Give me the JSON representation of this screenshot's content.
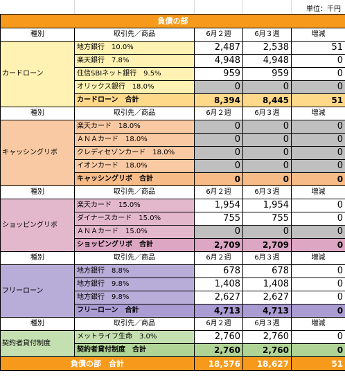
{
  "unit_label": "単位：千円",
  "title": "負債の部",
  "headers": {
    "category": "種別",
    "item": "取引先／商品",
    "w2": "6月２週",
    "w3": "6月３週",
    "diff": "増減"
  },
  "sections": [
    {
      "category": "カードローン",
      "rows": [
        {
          "item": "地方銀行　10.0%",
          "w2": "2,487",
          "w3": "2,538",
          "diff": "51",
          "grey": false
        },
        {
          "item": "楽天銀行　7.8%",
          "w2": "4,948",
          "w3": "4,948",
          "diff": "0",
          "grey": false
        },
        {
          "item": "住信SBIネット銀行　9.5%",
          "w2": "959",
          "w3": "959",
          "diff": "0",
          "grey": false
        },
        {
          "item": "オリックス銀行　18.0%",
          "w2": "0",
          "w3": "0",
          "diff": "0",
          "grey": true
        }
      ],
      "total": {
        "label": "カードローン　合計",
        "w2": "8,394",
        "w3": "8,445",
        "diff": "51"
      }
    },
    {
      "category": "キャッシングリボ",
      "rows": [
        {
          "item": "楽天カード　18.0%",
          "w2": "0",
          "w3": "0",
          "diff": "0",
          "grey": true
        },
        {
          "item": "ＡＮＡカード　18.0%",
          "w2": "0",
          "w3": "0",
          "diff": "0",
          "grey": true
        },
        {
          "item": "クレディセゾンカード　18.0%",
          "w2": "0",
          "w3": "0",
          "diff": "0",
          "grey": true
        },
        {
          "item": "イオンカード　18.0%",
          "w2": "0",
          "w3": "0",
          "diff": "0",
          "grey": true
        }
      ],
      "total": {
        "label": "キャッシングリボ　合計",
        "w2": "0",
        "w3": "0",
        "diff": "0"
      }
    },
    {
      "category": "ショッピングリボ",
      "rows": [
        {
          "item": "楽天カード　15.0%",
          "w2": "1,954",
          "w3": "1,954",
          "diff": "0",
          "grey": false
        },
        {
          "item": "ダイナースカード　15.0%",
          "w2": "755",
          "w3": "755",
          "diff": "0",
          "grey": false
        },
        {
          "item": "ＡＮＡカード　15.0%",
          "w2": "0",
          "w3": "0",
          "diff": "0",
          "grey": true
        }
      ],
      "total": {
        "label": "ショッピングリボ　合計",
        "w2": "2,709",
        "w3": "2,709",
        "diff": "0"
      }
    },
    {
      "category": "フリーローン",
      "rows": [
        {
          "item": "地方銀行　8.8%",
          "w2": "678",
          "w3": "678",
          "diff": "0",
          "grey": false
        },
        {
          "item": "地方銀行　9.8%",
          "w2": "1,408",
          "w3": "1,408",
          "diff": "0",
          "grey": false
        },
        {
          "item": "地方銀行　9.8%",
          "w2": "2,627",
          "w3": "2,627",
          "diff": "0",
          "grey": false
        }
      ],
      "total": {
        "label": "フリーローン　合計",
        "w2": "4,713",
        "w3": "4,713",
        "diff": "0"
      }
    },
    {
      "category": "契約者貸付制度",
      "rows": [
        {
          "item": "メットライフ生命　3.0%",
          "w2": "2,760",
          "w3": "2,760",
          "diff": "0",
          "grey": false
        }
      ],
      "total": {
        "label": "契約者貸付制度　合計",
        "w2": "2,760",
        "w3": "2,760",
        "diff": "0"
      }
    }
  ],
  "grand_total": {
    "label": "負債の部　合計",
    "w2": "18,576",
    "w3": "18,627",
    "diff": "51"
  },
  "colors": {
    "title_bg": "#f79a1c",
    "card": "#fff2b3",
    "card_total": "#ffd98a",
    "cash": "#f8c9a2",
    "cash_total": "#f7bb87",
    "shop": "#e3b8cd",
    "shop_total": "#dda6c3",
    "free": "#b8acd8",
    "free_total": "#aa9cd3",
    "contract": "#c4dfb0",
    "contract_total": "#b0d495",
    "zero_grey": "#bfbfbf"
  }
}
